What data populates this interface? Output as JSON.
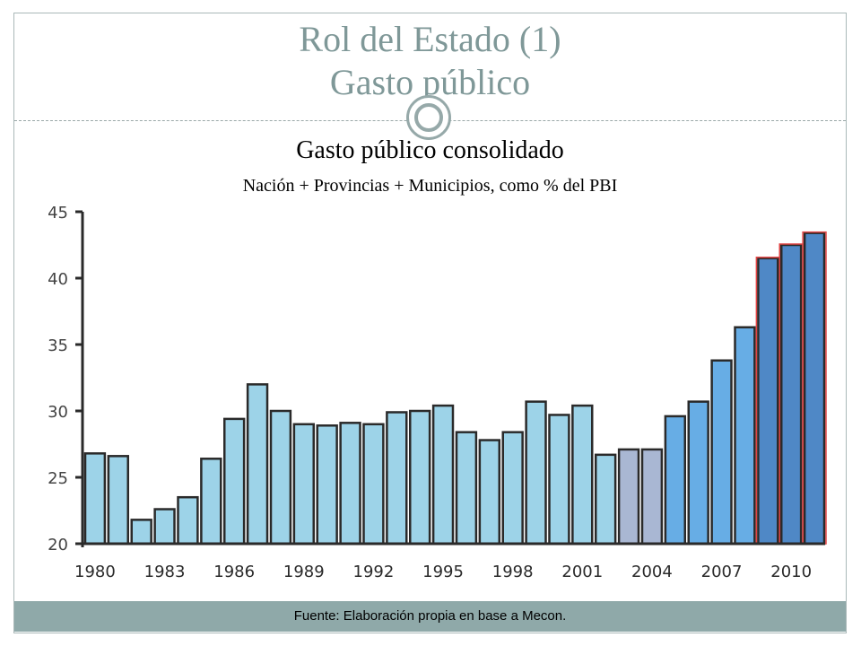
{
  "slide": {
    "title_line1": "Rol del Estado (1)",
    "title_line2": "Gasto público",
    "source": "Fuente: Elaboración propia en base a Mecon."
  },
  "chart_data": {
    "type": "bar",
    "title": "Gasto público consolidado",
    "subtitle": "Nación + Provincias + Municipios, como % del PBI",
    "xlabel": "",
    "ylabel": "",
    "ylim": [
      20,
      45
    ],
    "yticks": [
      20,
      25,
      30,
      35,
      40,
      45
    ],
    "grid": false,
    "categories": [
      "1980",
      "1981",
      "1982",
      "1983",
      "1984",
      "1985",
      "1986",
      "1987",
      "1988",
      "1989",
      "1990",
      "1991",
      "1992",
      "1993",
      "1994",
      "1995",
      "1996",
      "1997",
      "1998",
      "1999",
      "2000",
      "2001",
      "2002",
      "2003",
      "2004",
      "2005",
      "2006",
      "2007",
      "2008",
      "2009",
      "2010",
      "2011"
    ],
    "x_tick_labels": [
      "1980",
      "1983",
      "1986",
      "1989",
      "1992",
      "1995",
      "1998",
      "2001",
      "2004",
      "2007",
      "2010"
    ],
    "values": [
      26.8,
      26.6,
      21.8,
      22.6,
      23.5,
      26.4,
      29.4,
      32.0,
      30.0,
      29.0,
      28.9,
      29.1,
      29.0,
      29.9,
      30.0,
      30.4,
      28.4,
      27.8,
      28.4,
      30.7,
      29.7,
      30.4,
      26.7,
      27.1,
      27.1,
      29.6,
      30.7,
      33.8,
      36.3,
      41.5,
      42.5,
      43.4
    ],
    "colors": {
      "period1": "#9dd3e8",
      "period2": "#a9b7d3",
      "period3": "#67ade5",
      "period4": "#4f88c6",
      "period4_outline": "#e04545",
      "bar_border": "#2a2a2a"
    },
    "period_starts": [
      0,
      23,
      25,
      29
    ]
  }
}
